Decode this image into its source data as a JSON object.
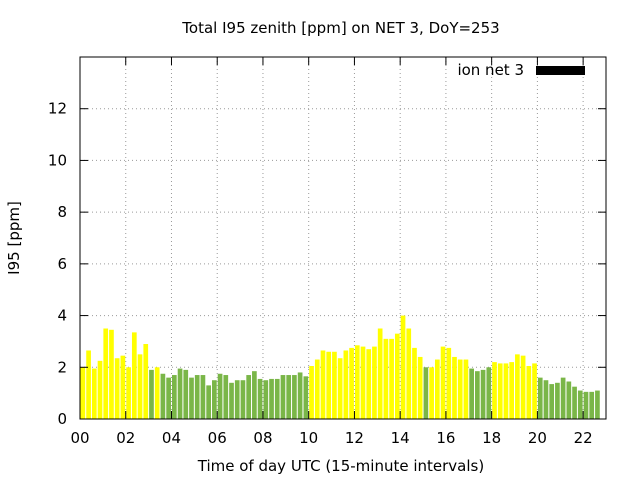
{
  "chart_data": {
    "type": "bar",
    "title": "Total I95 zenith [ppm] on NET 3, DoY=253",
    "xlabel": "Time of day UTC (15-minute intervals)",
    "ylabel": "I95 [ppm]",
    "ylim": [
      0,
      14
    ],
    "xlim": [
      0,
      23
    ],
    "grid": true,
    "legend": {
      "position": "top-right",
      "entries": [
        {
          "label": "ion net 3",
          "color": "#000000"
        }
      ]
    },
    "x_ticks": [
      "00",
      "02",
      "04",
      "06",
      "08",
      "10",
      "12",
      "14",
      "16",
      "18",
      "20",
      "22"
    ],
    "y_ticks": [
      "0",
      "2",
      "4",
      "6",
      "8",
      "10",
      "12"
    ],
    "bar_colors": {
      "yellow": "#ffff00",
      "green": "#7ab648"
    },
    "bars": [
      {
        "x": 0.0,
        "value": 2.0,
        "color": "yellow"
      },
      {
        "x": 0.25,
        "value": 2.65,
        "color": "yellow"
      },
      {
        "x": 0.5,
        "value": 1.95,
        "color": "yellow"
      },
      {
        "x": 0.75,
        "value": 2.25,
        "color": "yellow"
      },
      {
        "x": 1.0,
        "value": 3.5,
        "color": "yellow"
      },
      {
        "x": 1.25,
        "value": 3.45,
        "color": "yellow"
      },
      {
        "x": 1.5,
        "value": 2.35,
        "color": "yellow"
      },
      {
        "x": 1.75,
        "value": 2.45,
        "color": "yellow"
      },
      {
        "x": 2.0,
        "value": 2.0,
        "color": "yellow"
      },
      {
        "x": 2.25,
        "value": 3.35,
        "color": "yellow"
      },
      {
        "x": 2.5,
        "value": 2.5,
        "color": "yellow"
      },
      {
        "x": 2.75,
        "value": 2.9,
        "color": "yellow"
      },
      {
        "x": 3.0,
        "value": 1.9,
        "color": "green"
      },
      {
        "x": 3.25,
        "value": 2.0,
        "color": "yellow"
      },
      {
        "x": 3.5,
        "value": 1.75,
        "color": "green"
      },
      {
        "x": 3.75,
        "value": 1.6,
        "color": "green"
      },
      {
        "x": 4.0,
        "value": 1.7,
        "color": "green"
      },
      {
        "x": 4.25,
        "value": 1.95,
        "color": "green"
      },
      {
        "x": 4.5,
        "value": 1.9,
        "color": "green"
      },
      {
        "x": 4.75,
        "value": 1.6,
        "color": "green"
      },
      {
        "x": 5.0,
        "value": 1.7,
        "color": "green"
      },
      {
        "x": 5.25,
        "value": 1.7,
        "color": "green"
      },
      {
        "x": 5.5,
        "value": 1.3,
        "color": "green"
      },
      {
        "x": 5.75,
        "value": 1.5,
        "color": "green"
      },
      {
        "x": 6.0,
        "value": 1.75,
        "color": "green"
      },
      {
        "x": 6.25,
        "value": 1.7,
        "color": "green"
      },
      {
        "x": 6.5,
        "value": 1.4,
        "color": "green"
      },
      {
        "x": 6.75,
        "value": 1.5,
        "color": "green"
      },
      {
        "x": 7.0,
        "value": 1.5,
        "color": "green"
      },
      {
        "x": 7.25,
        "value": 1.7,
        "color": "green"
      },
      {
        "x": 7.5,
        "value": 1.85,
        "color": "green"
      },
      {
        "x": 7.75,
        "value": 1.55,
        "color": "green"
      },
      {
        "x": 8.0,
        "value": 1.5,
        "color": "green"
      },
      {
        "x": 8.25,
        "value": 1.55,
        "color": "green"
      },
      {
        "x": 8.5,
        "value": 1.55,
        "color": "green"
      },
      {
        "x": 8.75,
        "value": 1.7,
        "color": "green"
      },
      {
        "x": 9.0,
        "value": 1.7,
        "color": "green"
      },
      {
        "x": 9.25,
        "value": 1.7,
        "color": "green"
      },
      {
        "x": 9.5,
        "value": 1.8,
        "color": "green"
      },
      {
        "x": 9.75,
        "value": 1.65,
        "color": "green"
      },
      {
        "x": 10.0,
        "value": 2.05,
        "color": "yellow"
      },
      {
        "x": 10.25,
        "value": 2.3,
        "color": "yellow"
      },
      {
        "x": 10.5,
        "value": 2.65,
        "color": "yellow"
      },
      {
        "x": 10.75,
        "value": 2.6,
        "color": "yellow"
      },
      {
        "x": 11.0,
        "value": 2.6,
        "color": "yellow"
      },
      {
        "x": 11.25,
        "value": 2.35,
        "color": "yellow"
      },
      {
        "x": 11.5,
        "value": 2.65,
        "color": "yellow"
      },
      {
        "x": 11.75,
        "value": 2.75,
        "color": "yellow"
      },
      {
        "x": 12.0,
        "value": 2.85,
        "color": "yellow"
      },
      {
        "x": 12.25,
        "value": 2.8,
        "color": "yellow"
      },
      {
        "x": 12.5,
        "value": 2.7,
        "color": "yellow"
      },
      {
        "x": 12.75,
        "value": 2.8,
        "color": "yellow"
      },
      {
        "x": 13.0,
        "value": 3.5,
        "color": "yellow"
      },
      {
        "x": 13.25,
        "value": 3.1,
        "color": "yellow"
      },
      {
        "x": 13.5,
        "value": 3.1,
        "color": "yellow"
      },
      {
        "x": 13.75,
        "value": 3.3,
        "color": "yellow"
      },
      {
        "x": 14.0,
        "value": 4.0,
        "color": "yellow"
      },
      {
        "x": 14.25,
        "value": 3.5,
        "color": "yellow"
      },
      {
        "x": 14.5,
        "value": 2.75,
        "color": "yellow"
      },
      {
        "x": 14.75,
        "value": 2.4,
        "color": "yellow"
      },
      {
        "x": 15.0,
        "value": 2.0,
        "color": "green"
      },
      {
        "x": 15.25,
        "value": 2.0,
        "color": "yellow"
      },
      {
        "x": 15.5,
        "value": 2.3,
        "color": "yellow"
      },
      {
        "x": 15.75,
        "value": 2.8,
        "color": "yellow"
      },
      {
        "x": 16.0,
        "value": 2.75,
        "color": "yellow"
      },
      {
        "x": 16.25,
        "value": 2.4,
        "color": "yellow"
      },
      {
        "x": 16.5,
        "value": 2.3,
        "color": "yellow"
      },
      {
        "x": 16.75,
        "value": 2.3,
        "color": "yellow"
      },
      {
        "x": 17.0,
        "value": 1.95,
        "color": "green"
      },
      {
        "x": 17.25,
        "value": 1.85,
        "color": "green"
      },
      {
        "x": 17.5,
        "value": 1.9,
        "color": "green"
      },
      {
        "x": 17.75,
        "value": 2.0,
        "color": "green"
      },
      {
        "x": 18.0,
        "value": 2.2,
        "color": "yellow"
      },
      {
        "x": 18.25,
        "value": 2.15,
        "color": "yellow"
      },
      {
        "x": 18.5,
        "value": 2.15,
        "color": "yellow"
      },
      {
        "x": 18.75,
        "value": 2.2,
        "color": "yellow"
      },
      {
        "x": 19.0,
        "value": 2.5,
        "color": "yellow"
      },
      {
        "x": 19.25,
        "value": 2.45,
        "color": "yellow"
      },
      {
        "x": 19.5,
        "value": 2.05,
        "color": "yellow"
      },
      {
        "x": 19.75,
        "value": 2.15,
        "color": "yellow"
      },
      {
        "x": 20.0,
        "value": 1.6,
        "color": "green"
      },
      {
        "x": 20.25,
        "value": 1.5,
        "color": "green"
      },
      {
        "x": 20.5,
        "value": 1.35,
        "color": "green"
      },
      {
        "x": 20.75,
        "value": 1.4,
        "color": "green"
      },
      {
        "x": 21.0,
        "value": 1.6,
        "color": "green"
      },
      {
        "x": 21.25,
        "value": 1.45,
        "color": "green"
      },
      {
        "x": 21.5,
        "value": 1.25,
        "color": "green"
      },
      {
        "x": 21.75,
        "value": 1.1,
        "color": "green"
      },
      {
        "x": 22.0,
        "value": 1.05,
        "color": "green"
      },
      {
        "x": 22.25,
        "value": 1.05,
        "color": "green"
      },
      {
        "x": 22.5,
        "value": 1.1,
        "color": "green"
      }
    ]
  }
}
